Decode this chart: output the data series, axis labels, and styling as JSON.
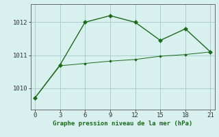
{
  "line1_x": [
    0,
    3,
    6,
    9,
    12,
    15,
    18,
    21
  ],
  "line1_y": [
    1009.7,
    1010.7,
    1012.0,
    1012.2,
    1012.0,
    1011.45,
    1011.8,
    1011.1
  ],
  "line2_x": [
    0,
    3,
    6,
    9,
    12,
    15,
    18,
    21
  ],
  "line2_y": [
    1009.7,
    1010.68,
    1010.75,
    1010.82,
    1010.87,
    1010.97,
    1011.02,
    1011.1
  ],
  "line_color": "#1a6b1a",
  "bg_color": "#d8f0ee",
  "grid_color": "#aacece",
  "xlabel": "Graphe pression niveau de la mer (hPa)",
  "xticks": [
    0,
    3,
    6,
    9,
    12,
    15,
    18,
    21
  ],
  "yticks": [
    1010,
    1011,
    1012
  ],
  "ylim": [
    1009.35,
    1012.55
  ],
  "xlim": [
    -0.5,
    21.5
  ]
}
